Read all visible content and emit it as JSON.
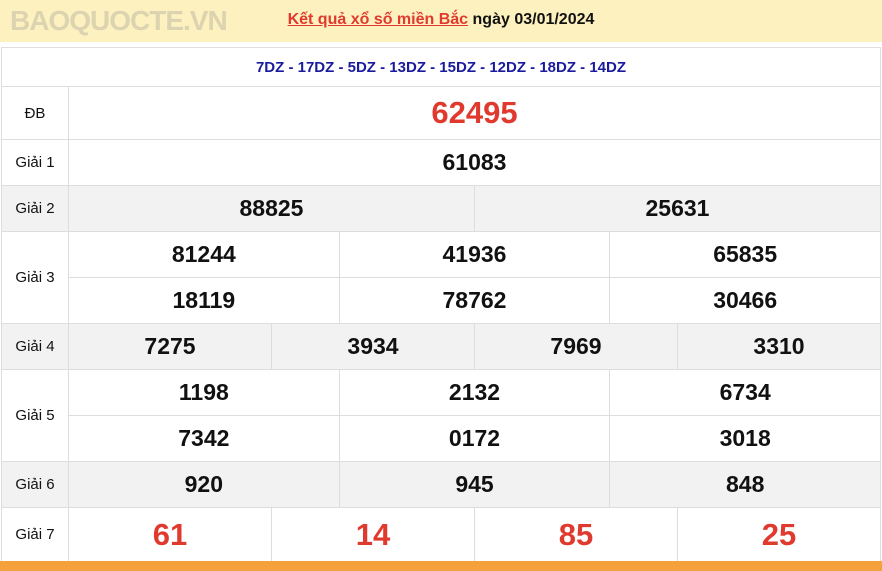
{
  "header": {
    "link_text": "Kết quả xổ số miền Bắc",
    "date_text": "ngày 03/01/2024"
  },
  "codes": "7DZ - 17DZ - 5DZ - 13DZ - 15DZ - 12DZ - 18DZ - 14DZ",
  "prizes": {
    "db": {
      "label": "ĐB",
      "values": [
        "62495"
      ]
    },
    "g1": {
      "label": "Giải 1",
      "values": [
        "61083"
      ]
    },
    "g2": {
      "label": "Giải 2",
      "values": [
        "88825",
        "25631"
      ]
    },
    "g3": {
      "label": "Giải 3",
      "values": [
        "81244",
        "41936",
        "65835",
        "18119",
        "78762",
        "30466"
      ]
    },
    "g4": {
      "label": "Giải 4",
      "values": [
        "7275",
        "3934",
        "7969",
        "3310"
      ]
    },
    "g5": {
      "label": "Giải 5",
      "values": [
        "1198",
        "2132",
        "6734",
        "7342",
        "0172",
        "3018"
      ]
    },
    "g6": {
      "label": "Giải 6",
      "values": [
        "920",
        "945",
        "848"
      ]
    },
    "g7": {
      "label": "Giải 7",
      "values": [
        "61",
        "14",
        "85",
        "25"
      ]
    }
  },
  "watermark": "BAOQUOCTE.VN",
  "colors": {
    "accent": "#e03a2f",
    "header_bg": "#fdf1c0",
    "codes": "#1a1a9e",
    "footer_bar": "#f4a13c"
  }
}
